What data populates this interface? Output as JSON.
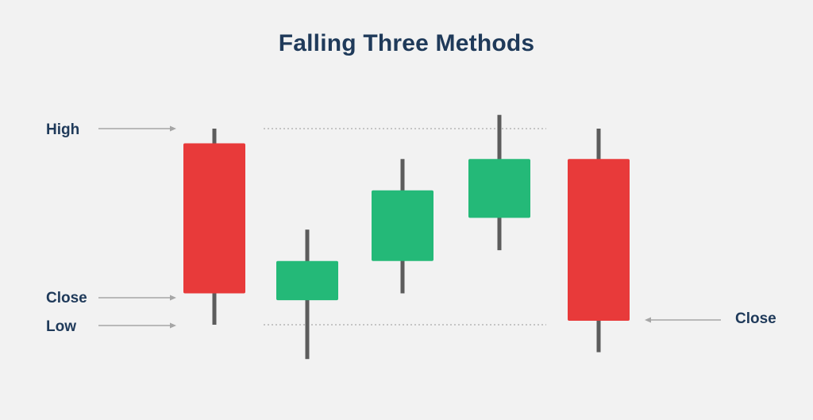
{
  "title": "Falling Three Methods",
  "colors": {
    "background": "#f2f2f2",
    "title": "#1f3a5a",
    "label": "#1f3a5a",
    "bearish": "#e83a3a",
    "bullish": "#24b978",
    "wick": "#5c5c5c",
    "arrow": "#a6a6a6",
    "guide": "#aaaaaa"
  },
  "annotations": {
    "high": "High",
    "close_left": "Close",
    "low": "Low",
    "close_right": "Close"
  },
  "chart_data": {
    "type": "candlestick",
    "title": "Falling Three Methods",
    "candles": [
      {
        "name": "bearish-candle-1",
        "direction": "down",
        "high": 100,
        "open": 92.5,
        "close": 16,
        "low": 0
      },
      {
        "name": "bullish-candle-2",
        "direction": "up",
        "high": 48.5,
        "open": 12.5,
        "close": 32.5,
        "low": -17.5
      },
      {
        "name": "bullish-candle-3",
        "direction": "up",
        "high": 84.5,
        "open": 32.5,
        "close": 68.5,
        "low": 16
      },
      {
        "name": "bullish-candle-4",
        "direction": "up",
        "high": 107,
        "open": 54.5,
        "close": 84.5,
        "low": 38
      },
      {
        "name": "bearish-candle-5",
        "direction": "down",
        "high": 100,
        "open": 84.5,
        "close": 2,
        "low": -14
      }
    ],
    "reference_lines": [
      {
        "name": "high-guide-line",
        "value": 100,
        "style": "dotted"
      },
      {
        "name": "low-guide-line",
        "value": 0,
        "style": "dotted"
      }
    ]
  }
}
